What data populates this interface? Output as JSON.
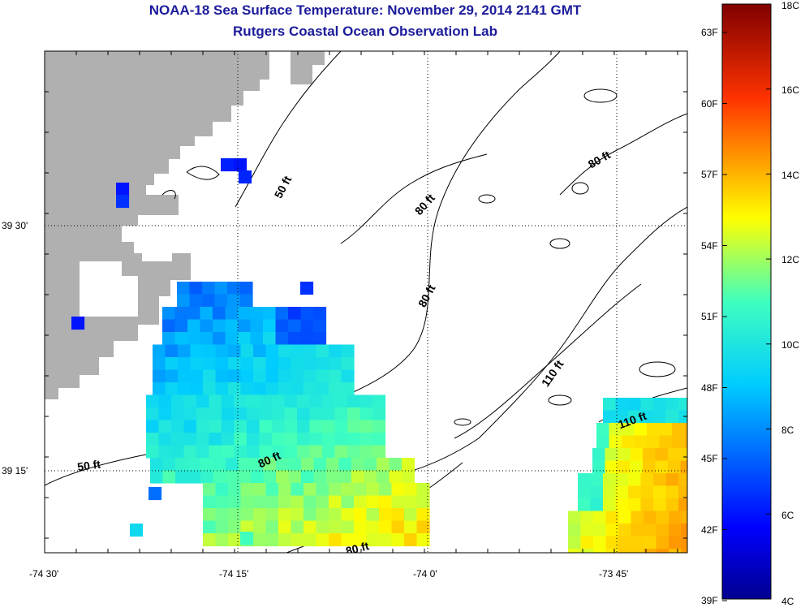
{
  "header": {
    "title": "NOAA-18 Sea Surface Temperature:  November 29, 2014 2141 GMT",
    "subtitle": "Rutgers Coastal Ocean Observation Lab"
  },
  "axes": {
    "x_ticks": [
      "-74 30'",
      "-74 15'",
      "-74 0'",
      "-73 45'"
    ],
    "y_ticks": [
      "39 30'",
      "39 15'"
    ]
  },
  "contours": {
    "labels": [
      "50 ft",
      "80 ft",
      "80 ft",
      "80 ft",
      "110 ft",
      "110 ft",
      "80 ft",
      "50 ft",
      "80 ft"
    ]
  },
  "colorbar": {
    "fahrenheit_labels": [
      "63F",
      "60F",
      "57F",
      "54F",
      "51F",
      "48F",
      "45F",
      "42F",
      "39F"
    ],
    "celsius_labels": [
      "18C",
      "16C",
      "14C",
      "12C",
      "10C",
      "8C",
      "6C",
      "4C"
    ],
    "range_c": [
      4,
      18
    ]
  },
  "colors": {
    "title": "#1c1c9c",
    "land": "#b0b0b0",
    "cold": "#00008f",
    "warm": "#800000"
  }
}
